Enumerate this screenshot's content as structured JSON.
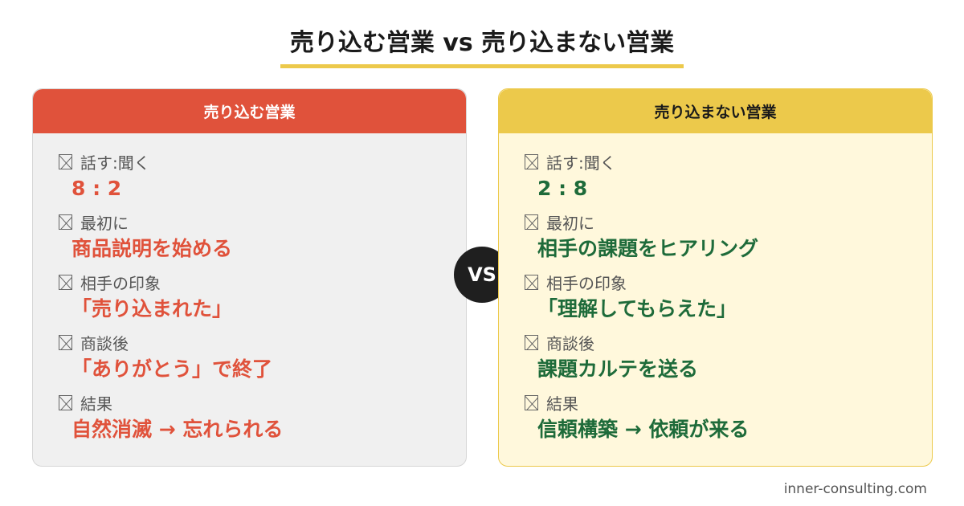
{
  "title": "売り込む営業 vs 売り込まない営業",
  "vs_label": "VS",
  "colors": {
    "red": "#e0523b",
    "yellow": "#ecc94b",
    "green": "#1e6b3a"
  },
  "left": {
    "header": "売り込む営業",
    "items": [
      {
        "label": "話す:聞く",
        "value": "8 : 2"
      },
      {
        "label": "最初に",
        "value": "商品説明を始める"
      },
      {
        "label": "相手の印象",
        "value": "「売り込まれた」"
      },
      {
        "label": "商談後",
        "value": "「ありがとう」で終了"
      },
      {
        "label": "結果",
        "value": "自然消滅 → 忘れられる"
      }
    ]
  },
  "right": {
    "header": "売り込まない営業",
    "items": [
      {
        "label": "話す:聞く",
        "value": "2 : 8"
      },
      {
        "label": "最初に",
        "value": "相手の課題をヒアリング"
      },
      {
        "label": "相手の印象",
        "value": "「理解してもらえた」"
      },
      {
        "label": "商談後",
        "value": "課題カルテを送る"
      },
      {
        "label": "結果",
        "value": "信頼構築 → 依頼が来る"
      }
    ]
  },
  "footer": "inner-consulting.com"
}
